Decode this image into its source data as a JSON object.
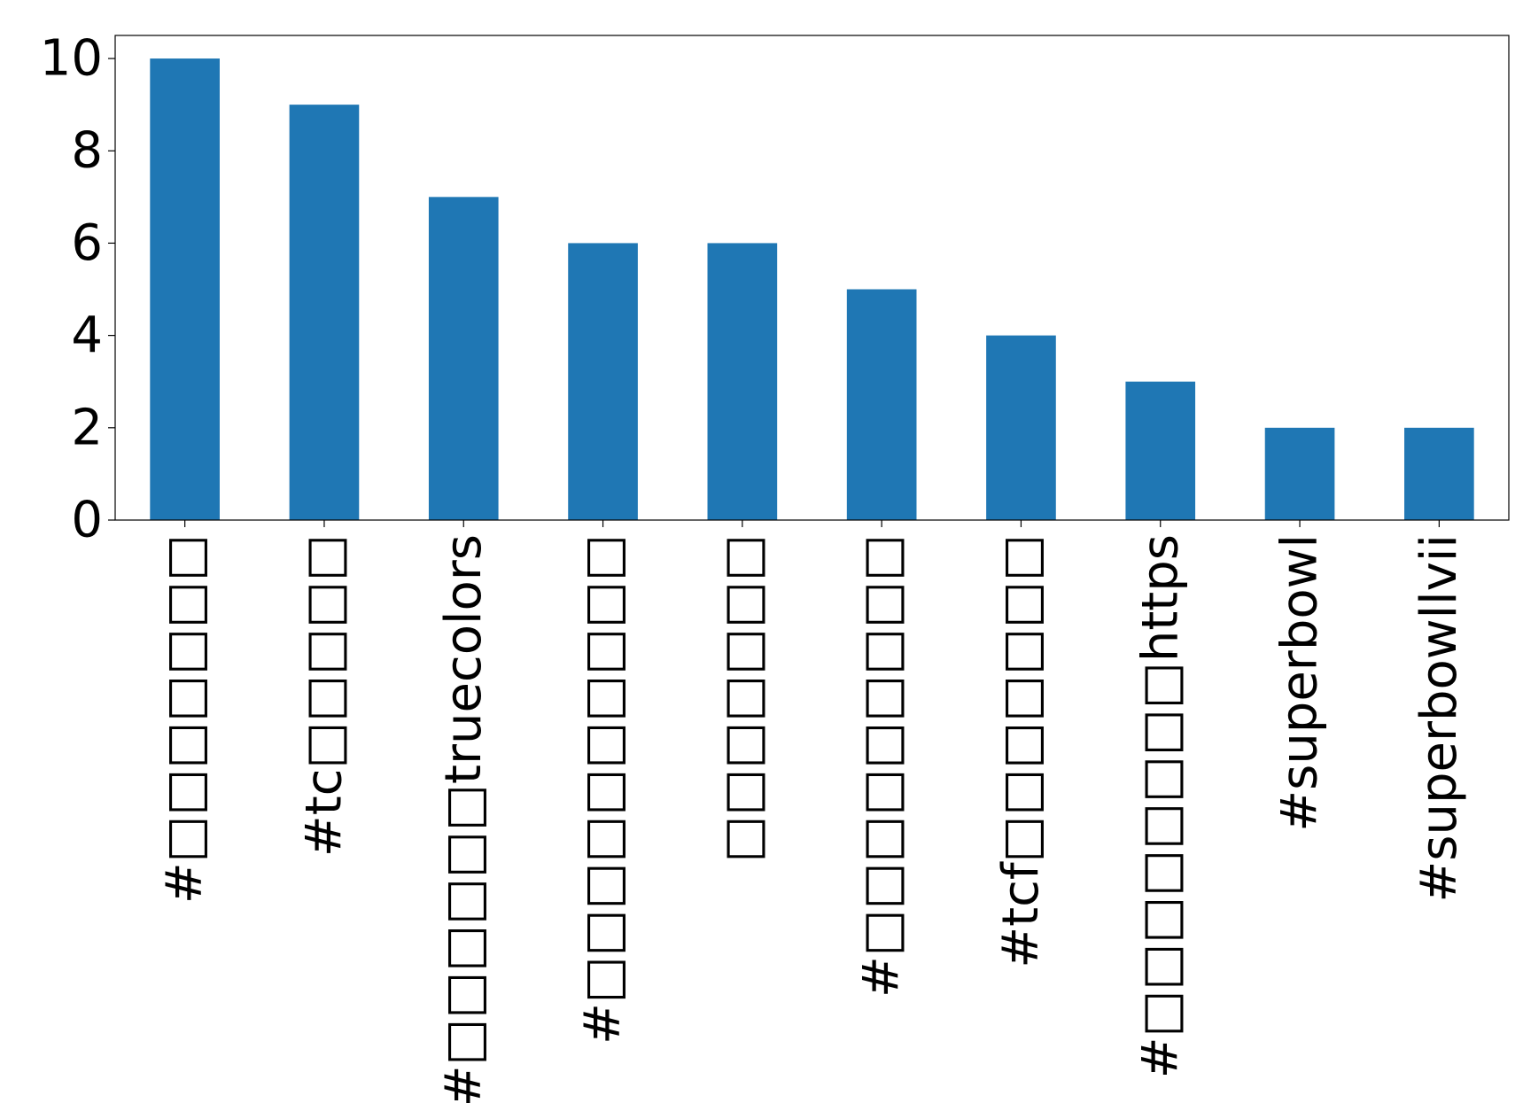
{
  "chart_data": {
    "type": "bar",
    "title": "",
    "xlabel": "",
    "ylabel": "",
    "categories": [
      "#□□□□□□□",
      "#tc□□□□□",
      "#□□□□□□truecolors",
      "#□□□□□□□□□□",
      "□□□□□□□",
      "#□□□□□□□□□",
      "#tcf□□□□□□□",
      "#□□□□□□□□https",
      "#superbowl",
      "#superbowllvii"
    ],
    "values": [
      10,
      9,
      7,
      6,
      6,
      5,
      4,
      3,
      2,
      2
    ],
    "ylim": [
      0,
      10.5
    ],
    "yticks": [
      0,
      2,
      4,
      6,
      8,
      10
    ],
    "ytick_labels": [
      "0",
      "2",
      "4",
      "6",
      "8",
      "10"
    ],
    "bar_color": "#1f77b4",
    "grid": false,
    "legend": "none"
  }
}
